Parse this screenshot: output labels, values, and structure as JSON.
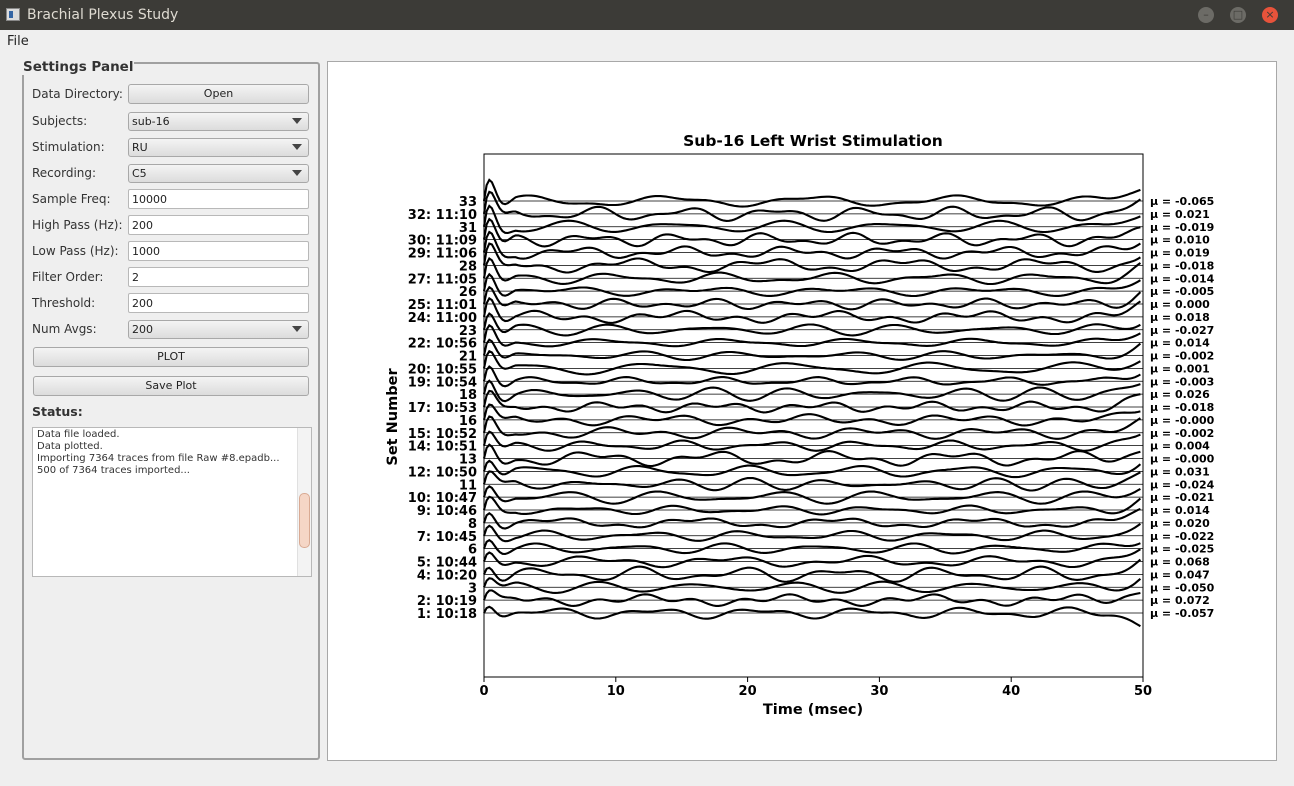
{
  "window": {
    "title": "Brachial Plexus Study",
    "min_glyph": "–",
    "max_glyph": "□",
    "close_glyph": "×"
  },
  "menu": {
    "file": "File"
  },
  "settings": {
    "title": "Settings Panel",
    "data_directory": {
      "label": "Data Directory:",
      "button": "Open"
    },
    "subjects": {
      "label": "Subjects:",
      "value": "sub-16"
    },
    "stimulation": {
      "label": "Stimulation:",
      "value": "RU"
    },
    "recording": {
      "label": "Recording:",
      "value": "C5"
    },
    "sample_freq": {
      "label": "Sample Freq:",
      "value": "10000"
    },
    "high_pass": {
      "label": "High Pass (Hz):",
      "value": "200"
    },
    "low_pass": {
      "label": "Low Pass (Hz):",
      "value": "1000"
    },
    "filter_order": {
      "label": "Filter Order:",
      "value": "2"
    },
    "threshold": {
      "label": "Threshold:",
      "value": "200"
    },
    "num_avgs": {
      "label": "Num Avgs:",
      "value": "200"
    },
    "plot_button": "PLOT",
    "save_button": "Save Plot"
  },
  "status": {
    "label": "Status:",
    "lines": [
      "Data file loaded.",
      "Data plotted.",
      "Importing 7364 traces from file Raw #8.epadb...",
      "500 of 7364 traces imported..."
    ]
  },
  "chart_data": {
    "type": "line",
    "title": "Sub-16 Left Wrist Stimulation",
    "xlabel": "Time (msec)",
    "ylabel": "Set Number",
    "xlim": [
      0,
      50
    ],
    "x_ticks": [
      "0",
      "10",
      "20",
      "30",
      "40",
      "50"
    ],
    "trace_labels": [
      "1: 10:18",
      "2: 10:19",
      "3",
      "4: 10:20",
      "5: 10:44",
      "6",
      "7: 10:45",
      "8",
      "9: 10:46",
      "10: 10:47",
      "11",
      "12: 10:50",
      "13",
      "14: 10:51",
      "15: 10:52",
      "16",
      "17: 10:53",
      "18",
      "19: 10:54",
      "20: 10:55",
      "21",
      "22: 10:56",
      "23",
      "24: 11:00",
      "25: 11:01",
      "26",
      "27: 11:05",
      "28",
      "29: 11:06",
      "30: 11:09",
      "31",
      "32: 11:10",
      "33"
    ],
    "mu_values": [
      "-0.057",
      "0.072",
      "-0.050",
      "0.047",
      "0.068",
      "-0.025",
      "-0.022",
      "0.020",
      "0.014",
      "-0.021",
      "-0.024",
      "0.031",
      "-0.000",
      "0.004",
      "-0.002",
      "-0.000",
      "-0.018",
      "0.026",
      "-0.003",
      "0.001",
      "-0.002",
      "0.014",
      "-0.027",
      "0.018",
      "0.000",
      "-0.005",
      "-0.014",
      "-0.018",
      "0.019",
      "0.010",
      "-0.019",
      "0.021",
      "-0.065"
    ],
    "mu_prefix": "μ = ",
    "grid": false
  }
}
